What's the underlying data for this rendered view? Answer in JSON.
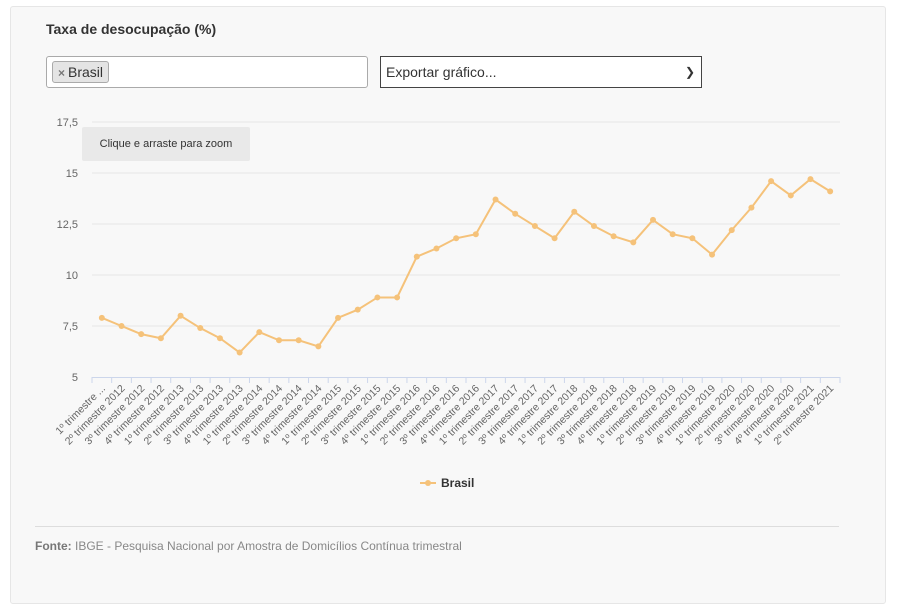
{
  "title": "Taxa de desocupação (%)",
  "filter": {
    "selected_tag": "Brasil",
    "remove_symbol": "×"
  },
  "export": {
    "selected": "Exportar gráfico..."
  },
  "zoom_hint": "Clique e arraste para zoom",
  "source": {
    "label": "Fonte:",
    "text": " IBGE - Pesquisa Nacional por Amostra de Domicílios Contínua trimestral"
  },
  "colors": {
    "series": "#f5c27a",
    "grid": "#e6e6e6",
    "axis": "#ccd6eb"
  },
  "chart_data": {
    "type": "line",
    "title": "Taxa de desocupação (%)",
    "xlabel": "",
    "ylabel": "",
    "ylim": [
      5,
      17.5
    ],
    "yticks": [
      "5",
      "7,5",
      "10",
      "12,5",
      "15",
      "17,5"
    ],
    "grid": true,
    "legend": "bottom",
    "categories": [
      "1º trimestre ...",
      "2º trimestre 2012",
      "3º trimestre 2012",
      "4º trimestre 2012",
      "1º trimestre 2013",
      "2º trimestre 2013",
      "3º trimestre 2013",
      "4º trimestre 2013",
      "1º trimestre 2014",
      "2º trimestre 2014",
      "3º trimestre 2014",
      "4º trimestre 2014",
      "1º trimestre 2015",
      "2º trimestre 2015",
      "3º trimestre 2015",
      "4º trimestre 2015",
      "1º trimestre 2016",
      "2º trimestre 2016",
      "3º trimestre 2016",
      "4º trimestre 2016",
      "1º trimestre 2017",
      "2º trimestre 2017",
      "3º trimestre 2017",
      "4º trimestre 2017",
      "1º trimestre 2018",
      "2º trimestre 2018",
      "3º trimestre 2018",
      "4º trimestre 2018",
      "1º trimestre 2019",
      "2º trimestre 2019",
      "3º trimestre 2019",
      "4º trimestre 2019",
      "1º trimestre 2020",
      "2º trimestre 2020",
      "3º trimestre 2020",
      "4º trimestre 2020",
      "1º trimestre 2021",
      "2º trimestre 2021"
    ],
    "series": [
      {
        "name": "Brasil",
        "values": [
          7.9,
          7.5,
          7.1,
          6.9,
          8.0,
          7.4,
          6.9,
          6.2,
          7.2,
          6.8,
          6.8,
          6.5,
          7.9,
          8.3,
          8.9,
          8.9,
          10.9,
          11.3,
          11.8,
          12.0,
          13.7,
          13.0,
          12.4,
          11.8,
          13.1,
          12.4,
          11.9,
          11.6,
          12.7,
          12.0,
          11.8,
          11.0,
          12.2,
          13.3,
          14.6,
          13.9,
          14.7,
          14.1
        ]
      }
    ]
  }
}
